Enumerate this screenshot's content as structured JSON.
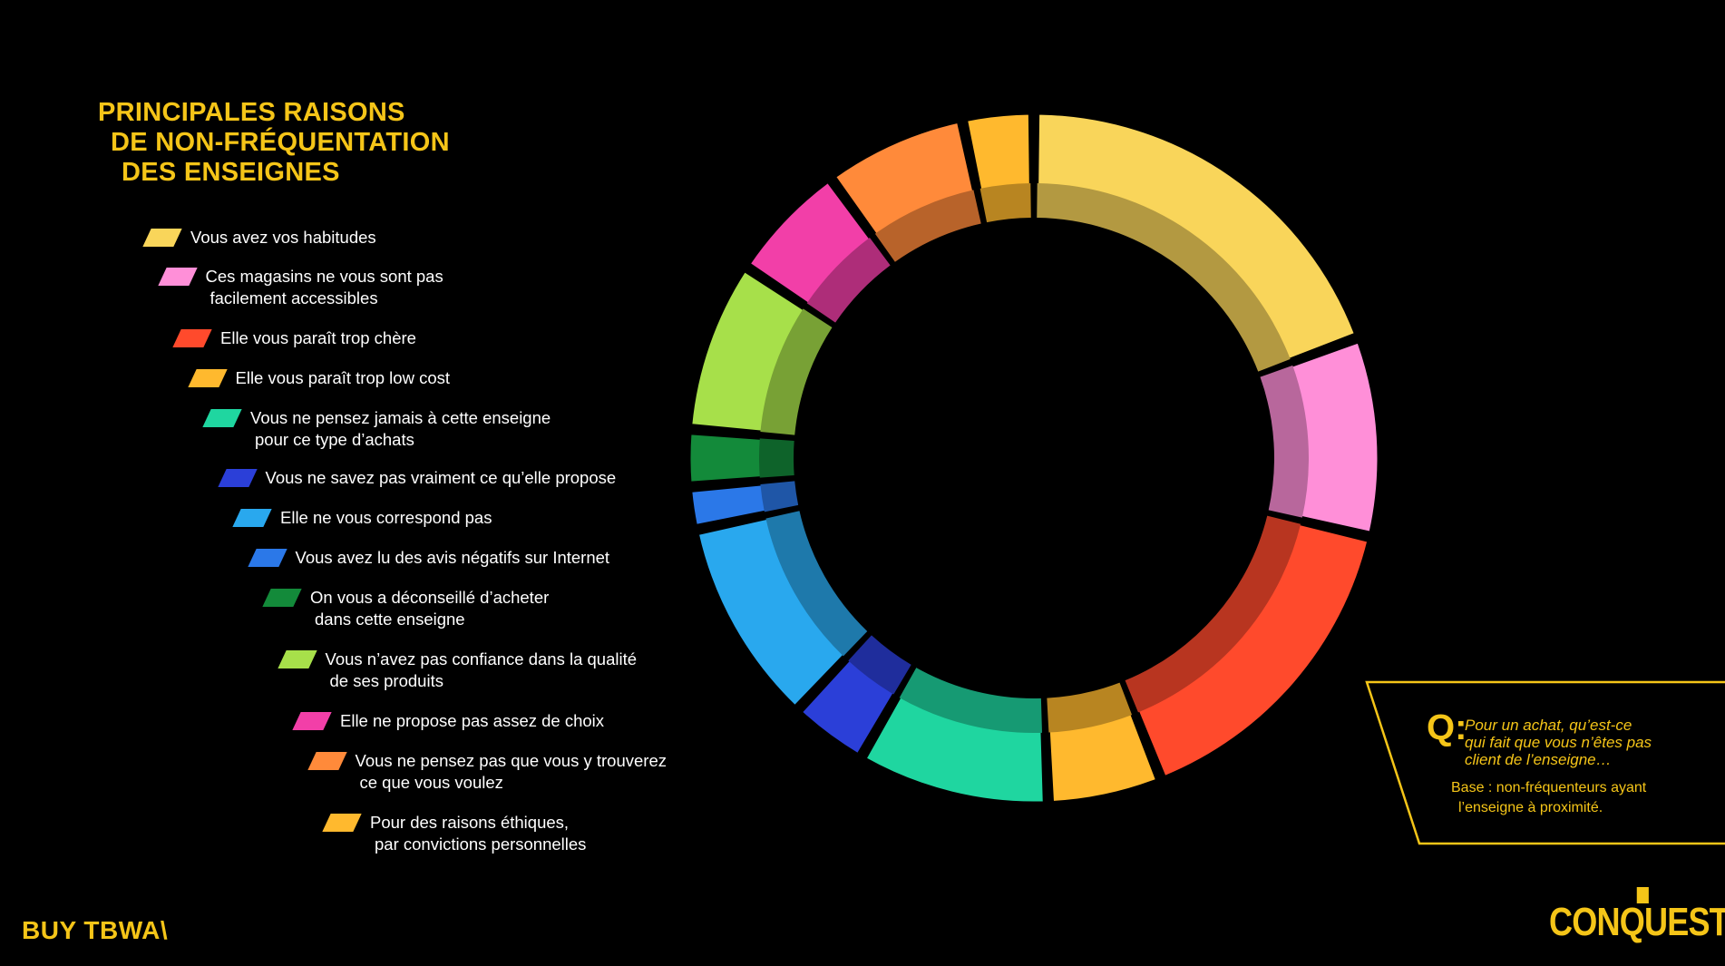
{
  "title_lines": [
    "PRINCIPALES RAISONS",
    "DE NON-FRÉQUENTATION",
    "DES ENSEIGNES"
  ],
  "legend": [
    {
      "lines": [
        "Vous avez vos habitudes"
      ],
      "color": "#f9d55a"
    },
    {
      "lines": [
        "Ces magasins ne vous sont pas",
        "facilement accessibles"
      ],
      "color": "#ff8fd8"
    },
    {
      "lines": [
        "Elle vous paraît trop chère"
      ],
      "color": "#ff4a2c"
    },
    {
      "lines": [
        "Elle vous paraît trop low cost"
      ],
      "color": "#ffb92e"
    },
    {
      "lines": [
        "Vous ne pensez jamais à cette enseigne",
        "pour ce type d’achats"
      ],
      "color": "#1fd6a0"
    },
    {
      "lines": [
        "Vous ne savez pas vraiment ce qu’elle propose"
      ],
      "color": "#2b3fd8"
    },
    {
      "lines": [
        "Elle ne vous correspond pas"
      ],
      "color": "#29a8ee"
    },
    {
      "lines": [
        "Vous avez lu des avis négatifs sur Internet"
      ],
      "color": "#2b78e8"
    },
    {
      "lines": [
        "On vous a déconseillé d’acheter",
        "dans cette enseigne"
      ],
      "color": "#138a3a"
    },
    {
      "lines": [
        "Vous n’avez pas confiance dans la qualité",
        "de ses produits"
      ],
      "color": "#a7e04a"
    },
    {
      "lines": [
        "Elle ne propose pas assez de choix"
      ],
      "color": "#f23fa8"
    },
    {
      "lines": [
        "Vous ne pensez pas que vous y trouverez",
        "ce que vous voulez"
      ],
      "color": "#ff8a3a"
    },
    {
      "lines": [
        "Pour des raisons éthiques,",
        "par convictions personnelles"
      ],
      "color": "#ffb92e"
    }
  ],
  "chart_data": {
    "type": "pie",
    "variant": "donut",
    "categories": [
      "Vous avez vos habitudes",
      "Ces magasins ne vous sont pas facilement accessibles",
      "Elle vous paraît trop chère",
      "Elle vous paraît trop low cost",
      "Vous ne pensez jamais à cette enseigne pour ce type d’achats",
      "Vous ne savez pas vraiment ce qu’elle propose",
      "Elle ne vous correspond pas",
      "Vous avez lu des avis négatifs sur Internet",
      "On vous a déconseillé d’acheter dans cette enseigne",
      "Vous n’avez pas confiance dans la qualité de ses produits",
      "Elle ne propose pas assez de choix",
      "Vous ne pensez pas que vous y trouverez ce que vous voulez",
      "Pour des raisons éthiques, par convictions personnelles"
    ],
    "values": [
      58,
      28,
      46,
      16,
      27,
      11,
      29,
      6,
      8,
      24,
      17,
      20,
      10
    ],
    "colors": [
      "#f9d55a",
      "#ff8fd8",
      "#ff4a2c",
      "#ffb92e",
      "#1fd6a0",
      "#2b3fd8",
      "#29a8ee",
      "#2b78e8",
      "#138a3a",
      "#a7e04a",
      "#f23fa8",
      "#ff8a3a",
      "#ffb92e"
    ],
    "start": "top, clockwise"
  },
  "question": {
    "letter": "Q:",
    "lines": [
      "Pour un achat, qu’est-ce",
      "qui fait que vous n’êtes pas",
      "client de l’enseigne…"
    ],
    "base_lines": [
      "Base : non-fréquenteurs ayant",
      "l’enseigne à proximité."
    ]
  },
  "logos": {
    "left": "BUY TBWA\\",
    "right": "CONQUEST"
  }
}
